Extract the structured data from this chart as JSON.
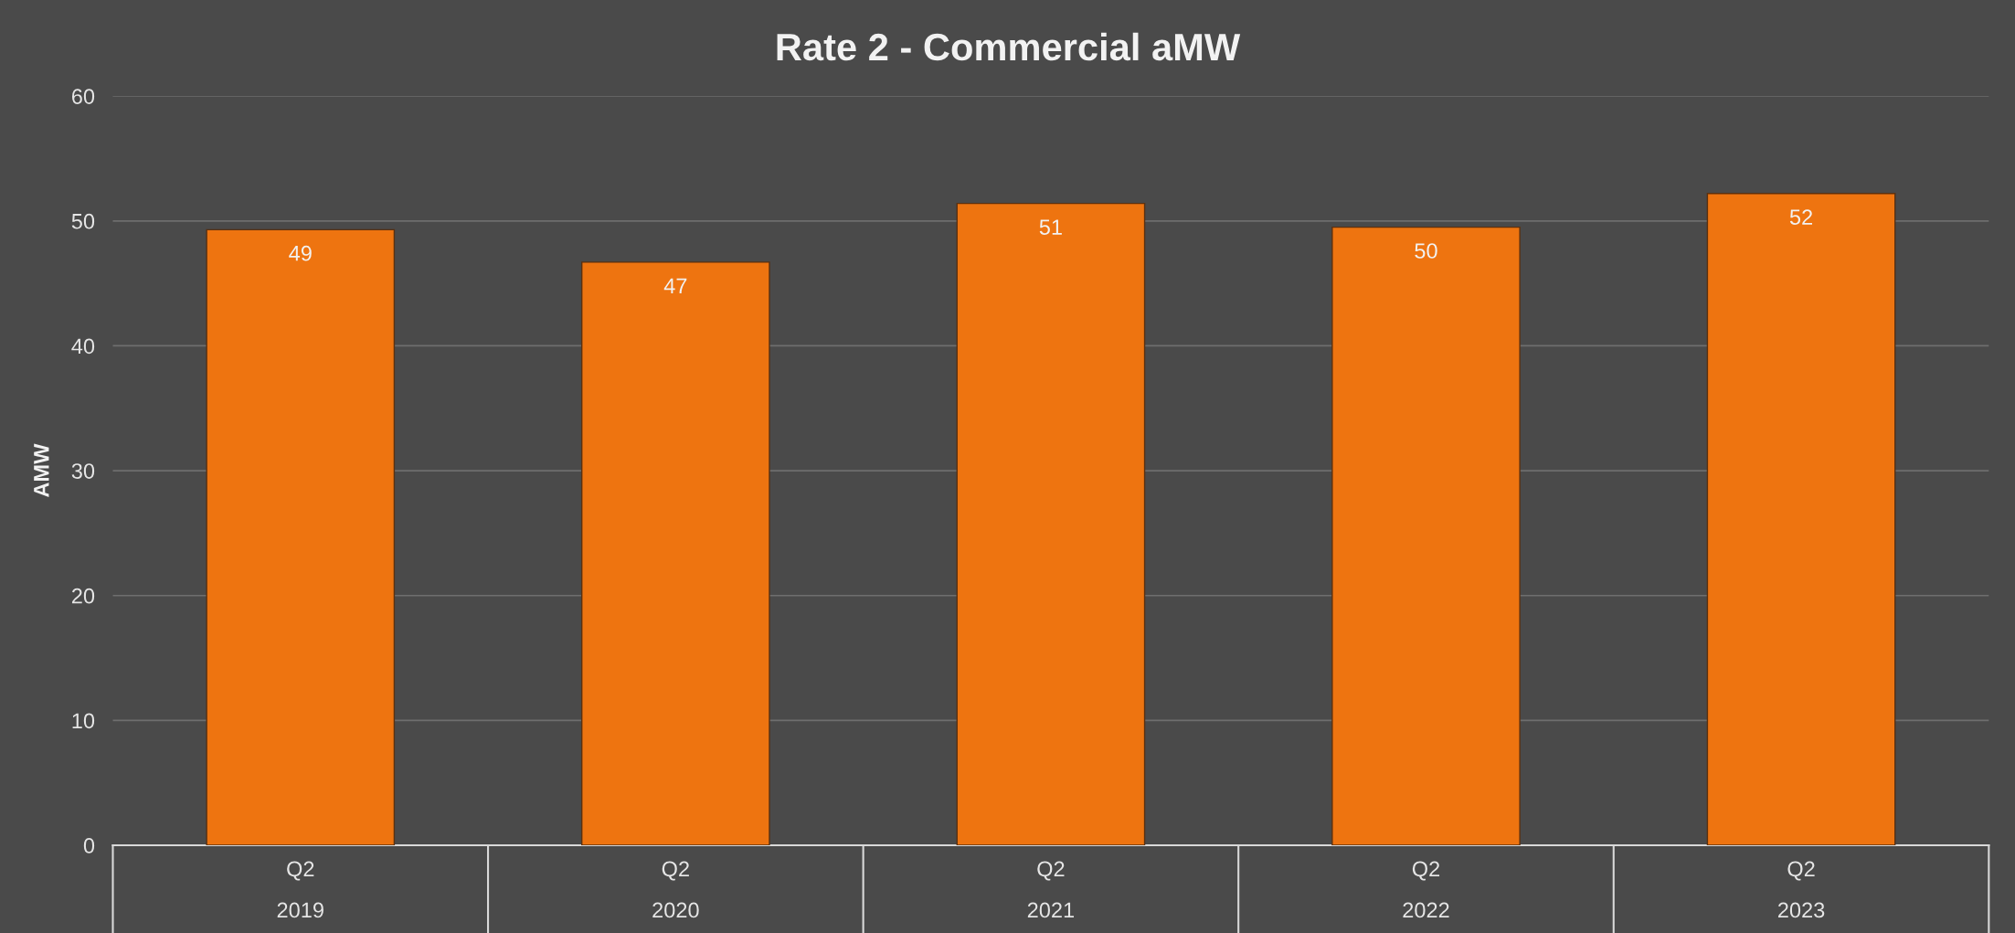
{
  "chart_data": {
    "type": "bar",
    "title": "Rate 2 - Commercial aMW",
    "ylabel": "AMW",
    "categories": [
      "Q2\n2019",
      "Q2\n2020",
      "Q2\n2021",
      "Q2\n2022",
      "Q2\n2023"
    ],
    "values": [
      49.3,
      46.7,
      51.4,
      49.5,
      52.2
    ],
    "value_labels": [
      "49",
      "47",
      "51",
      "50",
      "52"
    ],
    "color": "#ee7410",
    "ylim": [
      0,
      60
    ],
    "yticks": [
      0,
      10,
      20,
      30,
      40,
      50,
      60
    ],
    "grid": "y"
  }
}
